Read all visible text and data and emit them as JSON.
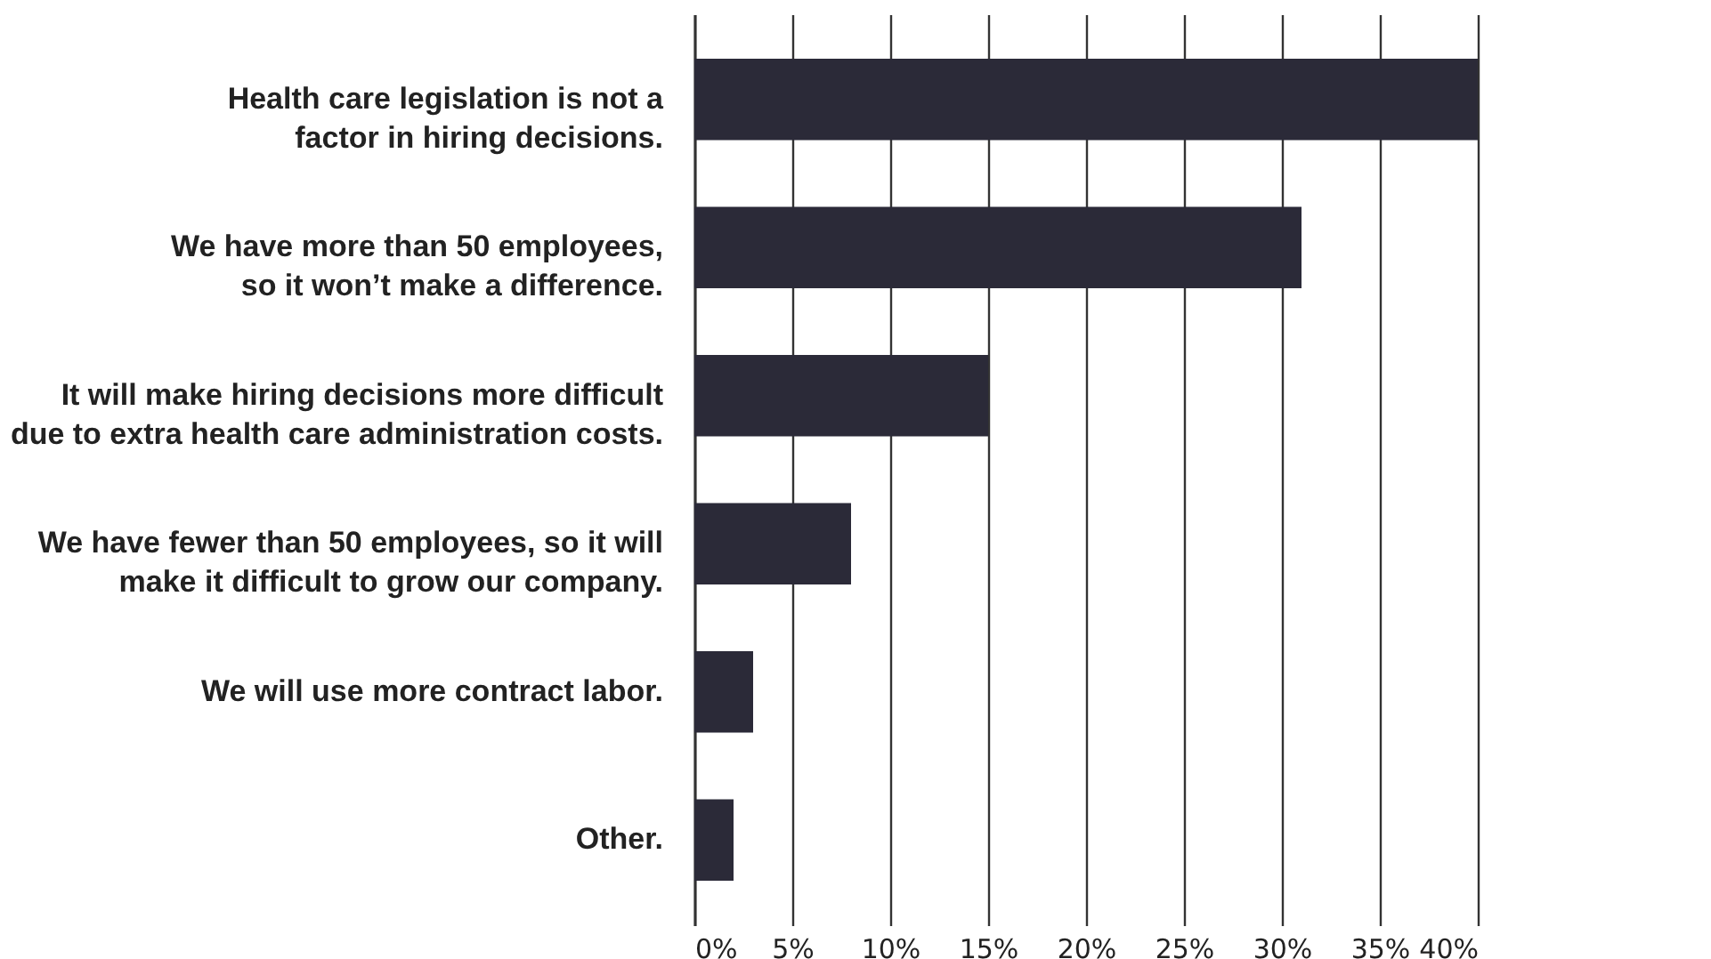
{
  "chart_data": {
    "type": "bar",
    "orientation": "horizontal",
    "categories": [
      "Health care legislation is not a\nfactor in hiring decisions.",
      "We have more than 50 employees,\nso it won’t make a difference.",
      "It will make hiring decisions more difficult\ndue to extra health care administration costs.",
      "We have fewer than 50 employees, so it will\nmake it difficult to grow our company.",
      "We will use more contract labor.",
      "Other."
    ],
    "values": [
      40,
      31,
      15,
      8,
      3,
      2
    ],
    "color": "#2b2a38",
    "xlim": [
      0,
      40
    ],
    "xticks": [
      {
        "value": 0,
        "label": "0%"
      },
      {
        "value": 5,
        "label": "5%"
      },
      {
        "value": 10,
        "label": "10%"
      },
      {
        "value": 15,
        "label": "15%"
      },
      {
        "value": 20,
        "label": "20%"
      },
      {
        "value": 25,
        "label": "25%"
      },
      {
        "value": 30,
        "label": "30%"
      },
      {
        "value": 35,
        "label": "35%"
      },
      {
        "value": 40,
        "label": "40%"
      }
    ],
    "grid": "x"
  }
}
